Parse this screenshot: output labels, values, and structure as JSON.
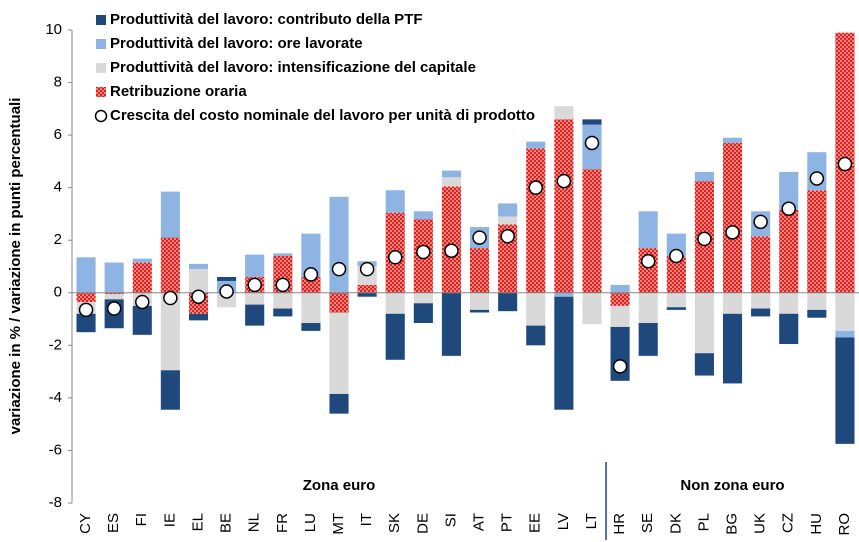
{
  "chart_data": {
    "type": "bar",
    "y_label": "variazione in % / variazione in punti percentuali",
    "categories": [
      "CY",
      "ES",
      "FI",
      "IE",
      "EL",
      "BE",
      "NL",
      "FR",
      "LU",
      "MT",
      "IT",
      "SK",
      "DE",
      "SI",
      "AT",
      "PT",
      "EE",
      "LV",
      "LT",
      "HR",
      "SE",
      "DK",
      "PL",
      "BG",
      "UK",
      "CZ",
      "HU",
      "RO"
    ],
    "series": [
      {
        "name": "Produttività del lavoro: contributo della PTF",
        "color": "#1f497d",
        "values": [
          -0.7,
          -1.1,
          -1.1,
          -1.5,
          -0.25,
          0.15,
          -0.8,
          -0.3,
          -0.3,
          -0.75,
          -0.15,
          -1.75,
          -0.75,
          -2.4,
          -0.1,
          -0.7,
          -0.75,
          -4.3,
          0.2,
          -2.05,
          -1.25,
          -0.1,
          -0.85,
          -2.65,
          -0.3,
          -1.15,
          -0.3,
          -4.05
        ]
      },
      {
        "name": "Produttività del lavoro: ore lavorate",
        "color": "#8db4e2",
        "values": [
          1.35,
          1.15,
          0.15,
          1.75,
          0.2,
          0.45,
          0.85,
          0.1,
          1.65,
          3.65,
          0.2,
          0.85,
          0.3,
          0.25,
          0.8,
          0.5,
          0.25,
          -0.15,
          1.7,
          0.3,
          1.4,
          0.85,
          0.35,
          0.2,
          0.95,
          1.45,
          1.45,
          -0.25
        ]
      },
      {
        "name": "Produttività del lavoro: intensificazione del capitale",
        "color": "#d9d9d9",
        "values": [
          -0.45,
          -0.2,
          -0.5,
          -2.95,
          0.9,
          -0.55,
          -0.45,
          -0.6,
          -1.15,
          -3.1,
          0.7,
          -0.8,
          -0.4,
          0.35,
          -0.65,
          0.3,
          -1.25,
          0.5,
          -1.2,
          -0.8,
          -1.15,
          -0.55,
          -2.3,
          -0.8,
          -0.6,
          -0.8,
          -0.65,
          -1.45
        ]
      },
      {
        "name": "Retribuzione oraria",
        "color": "#e0201b",
        "pattern": true,
        "values": [
          -0.35,
          -0.05,
          1.15,
          2.1,
          -0.8,
          0,
          0.6,
          1.4,
          0.6,
          -0.75,
          0.3,
          3.05,
          2.8,
          4.05,
          1.7,
          2.6,
          5.5,
          6.6,
          4.7,
          -0.5,
          1.7,
          1.4,
          4.25,
          5.7,
          2.15,
          3.15,
          3.9,
          9.9
        ]
      }
    ],
    "markers": {
      "name": "Crescita del costo nominale del lavoro per unità di prodotto",
      "values": [
        -0.65,
        -0.6,
        -0.35,
        -0.2,
        -0.15,
        0.05,
        0.3,
        0.3,
        0.7,
        0.9,
        0.9,
        1.35,
        1.55,
        1.6,
        2.1,
        2.15,
        4.0,
        4.25,
        5.7,
        -2.8,
        1.2,
        1.4,
        2.05,
        2.3,
        2.7,
        3.2,
        4.35,
        4.9
      ]
    },
    "stack_order": "reverse",
    "groups": [
      {
        "label": "Zona euro",
        "from": 0,
        "to": 18
      },
      {
        "label": "Non zona euro",
        "from": 19,
        "to": 27
      }
    ],
    "ylim": [
      -8,
      10
    ],
    "yticks": [
      -8,
      -6,
      -4,
      -2,
      0,
      2,
      4,
      6,
      8,
      10
    ]
  }
}
